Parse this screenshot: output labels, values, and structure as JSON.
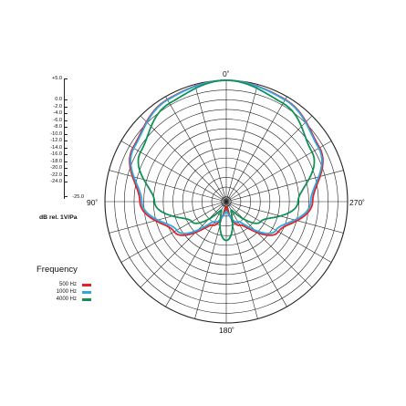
{
  "chart_data": {
    "type": "polar",
    "angle_labels": {
      "top": "0˚",
      "left": "90˚",
      "right": "270˚",
      "bottom": "180˚"
    },
    "radial_scale_db": [
      "+5.0",
      "0.0",
      "-2.0",
      "-4.0",
      "-6.0",
      "-8.0",
      "-10.0",
      "-12.0",
      "-14.0",
      "-16.0",
      "-18.0",
      "-20.0",
      "-22.0",
      "-24.0",
      "-25.0"
    ],
    "radial_axis_label": "dB rel. 1V/Pa",
    "legend_title": "Frequency",
    "series": [
      {
        "name": "500 Hz",
        "color": "#e0232a",
        "angles_deg": [
          0,
          30,
          60,
          90,
          120,
          150,
          180
        ],
        "level_db": [
          0.0,
          -0.7,
          -2.8,
          -7.2,
          -12.6,
          -19.4,
          -24.0
        ]
      },
      {
        "name": "1000 Hz",
        "color": "#2fa8e0",
        "angles_deg": [
          0,
          30,
          60,
          90,
          120,
          150,
          180
        ],
        "level_db": [
          0.0,
          -0.8,
          -3.0,
          -7.6,
          -13.2,
          -20.2,
          -23.0
        ]
      },
      {
        "name": "4000 Hz",
        "color": "#11905a",
        "angles_deg": [
          0,
          30,
          60,
          90,
          120,
          150,
          180
        ],
        "level_db": [
          0.0,
          -1.6,
          -4.6,
          -10.2,
          -16.8,
          -23.0,
          -17.0
        ]
      }
    ],
    "grid": true
  }
}
